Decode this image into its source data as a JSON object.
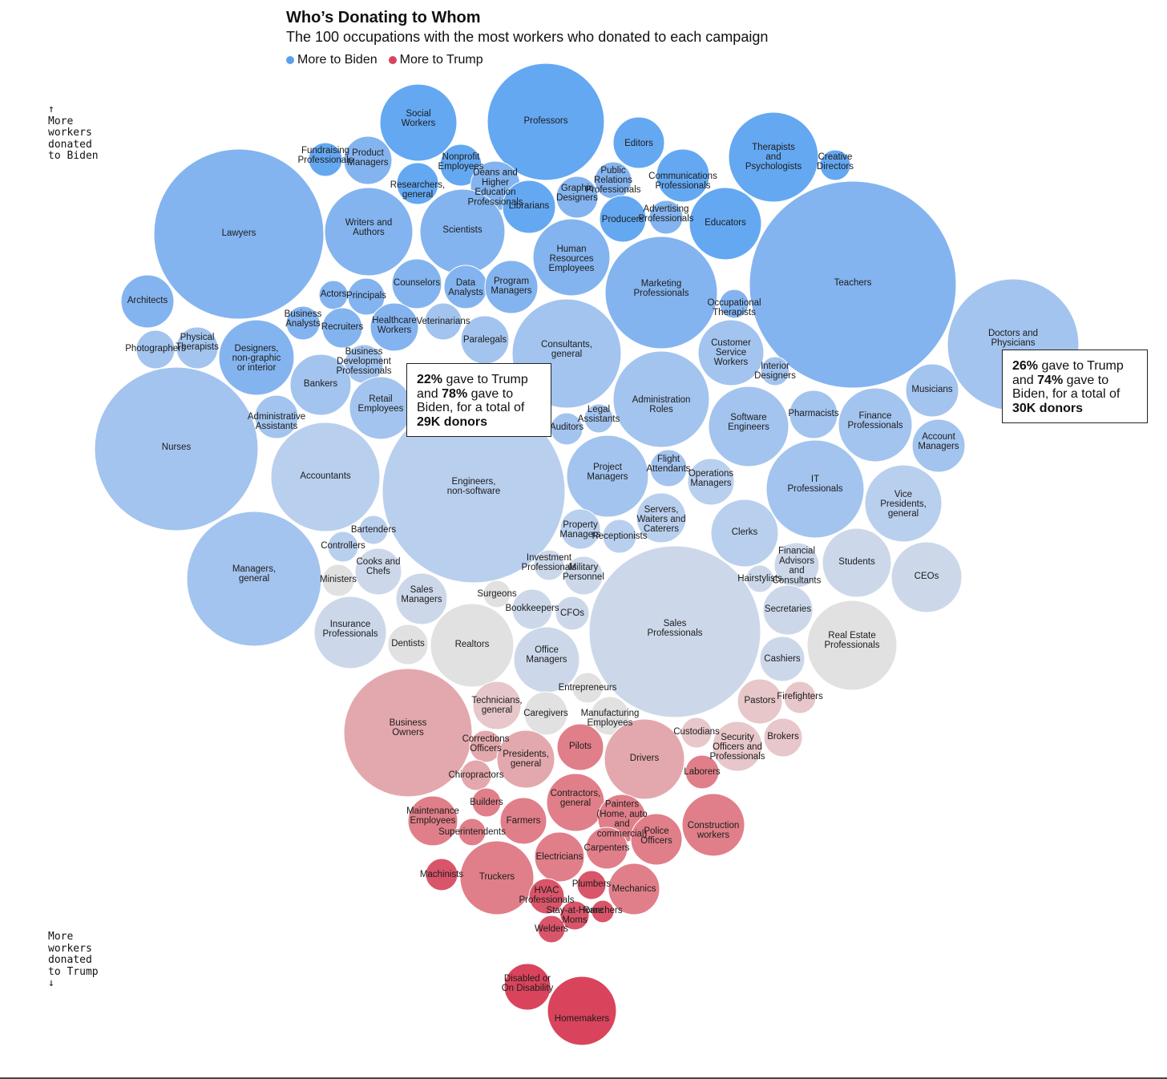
{
  "header": {
    "title": "Who’s Donating to Whom",
    "subtitle": "The 100 occupations with the most workers who donated to each campaign"
  },
  "legend": {
    "biden_label": "More to Biden",
    "trump_label": "More to Trump",
    "biden_color": "#5b9ff0",
    "trump_color": "#d9445c"
  },
  "axis_notes": {
    "top_arrow": "↑",
    "top": "More\nworkers\ndonated\nto Biden",
    "bottom": "More\nworkers\ndonated\nto Trump",
    "bottom_arrow": "↓"
  },
  "tooltips": {
    "engineers": {
      "trump_pct": "22%",
      "biden_pct": "78%",
      "total": "29K donors",
      "text_1": " gave to Trump and ",
      "text_2": " gave to Biden, for a total of "
    },
    "doctors": {
      "trump_pct": "26%",
      "biden_pct": "74%",
      "total": "30K donors",
      "text_1": " gave to Trump and ",
      "text_2": " gave to Biden, for a total of "
    }
  },
  "chart_data": {
    "type": "bubble",
    "title": "Who’s Donating to Whom",
    "subtitle": "The 100 occupations with the most workers who donated to each campaign",
    "encoding": {
      "size": "number of donors",
      "color": "share of donors to Trump vs Biden",
      "vertical": "more workers donated to Biden (top) vs to Trump (bottom)"
    },
    "labeled_points": [
      {
        "name": "Engineers, non-software",
        "trump_pct": 22,
        "biden_pct": 78,
        "donors": "29K"
      },
      {
        "name": "Doctors and Physicians",
        "trump_pct": 26,
        "biden_pct": 74,
        "donors": "30K"
      }
    ],
    "bubbles": [
      {
        "label": "Lawyers",
        "c": "b2"
      },
      {
        "label": "Professors",
        "c": "b1"
      },
      {
        "label": "Social Workers",
        "c": "b1"
      },
      {
        "label": "Fundraising Professionals",
        "c": "b1"
      },
      {
        "label": "Product Managers",
        "c": "b2"
      },
      {
        "label": "Nonprofit Employees",
        "c": "b1"
      },
      {
        "label": "Researchers, general",
        "c": "b1"
      },
      {
        "label": "Deans and Higher Education Professionals",
        "c": "b2"
      },
      {
        "label": "Librarians",
        "c": "b1"
      },
      {
        "label": "Graphic Designers",
        "c": "b2"
      },
      {
        "label": "Editors",
        "c": "b1"
      },
      {
        "label": "Public Relations Professionals",
        "c": "b2"
      },
      {
        "label": "Communications Professionals",
        "c": "b1"
      },
      {
        "label": "Therapists and Psychologists",
        "c": "b1"
      },
      {
        "label": "Creative Directors",
        "c": "b1"
      },
      {
        "label": "Writers and Authors",
        "c": "b2"
      },
      {
        "label": "Scientists",
        "c": "b2"
      },
      {
        "label": "Producers",
        "c": "b1"
      },
      {
        "label": "Advertising Professionals",
        "c": "b2"
      },
      {
        "label": "Educators",
        "c": "b1"
      },
      {
        "label": "Human Resources Employees",
        "c": "b2"
      },
      {
        "label": "Teachers",
        "c": "b2"
      },
      {
        "label": "Architects",
        "c": "b2"
      },
      {
        "label": "Counselors",
        "c": "b2"
      },
      {
        "label": "Data Analysts",
        "c": "b2"
      },
      {
        "label": "Program Managers",
        "c": "b2"
      },
      {
        "label": "Marketing Professionals",
        "c": "b2"
      },
      {
        "label": "Actors",
        "c": "b2"
      },
      {
        "label": "Principals",
        "c": "b2"
      },
      {
        "label": "Occupational Therapists",
        "c": "b2"
      },
      {
        "label": "Doctors and Physicians",
        "c": "b3"
      },
      {
        "label": "Business Analysts",
        "c": "b2"
      },
      {
        "label": "Recruiters",
        "c": "b2"
      },
      {
        "label": "Healthcare Workers",
        "c": "b2"
      },
      {
        "label": "Veterinarians",
        "c": "b3"
      },
      {
        "label": "Photographers",
        "c": "b3"
      },
      {
        "label": "Physical Therapists",
        "c": "b3"
      },
      {
        "label": "Designers, non-graphic or interior",
        "c": "b2"
      },
      {
        "label": "Paralegals",
        "c": "b3"
      },
      {
        "label": "Consultants, general",
        "c": "b3"
      },
      {
        "label": "Customer Service Workers",
        "c": "b3"
      },
      {
        "label": "Business Development Professionals",
        "c": "b3"
      },
      {
        "label": "Interior Designers",
        "c": "b3"
      },
      {
        "label": "Bankers",
        "c": "b3"
      },
      {
        "label": "Musicians",
        "c": "b3"
      },
      {
        "label": "Administrative Assistants",
        "c": "b3"
      },
      {
        "label": "Retail Employees",
        "c": "b3"
      },
      {
        "label": "Legal Assistants",
        "c": "b3"
      },
      {
        "label": "Administration Roles",
        "c": "b3"
      },
      {
        "label": "Software Engineers",
        "c": "b3"
      },
      {
        "label": "Pharmacists",
        "c": "b3"
      },
      {
        "label": "Finance Professionals",
        "c": "b3"
      },
      {
        "label": "Nurses",
        "c": "b3"
      },
      {
        "label": "Auditors",
        "c": "b3"
      },
      {
        "label": "Account Managers",
        "c": "b3"
      },
      {
        "label": "Accountants",
        "c": "b4"
      },
      {
        "label": "Engineers, non-software",
        "c": "b4"
      },
      {
        "label": "Project Managers",
        "c": "b3"
      },
      {
        "label": "Flight Attendants",
        "c": "b3"
      },
      {
        "label": "Operations Managers",
        "c": "b4"
      },
      {
        "label": "IT Professionals",
        "c": "b3"
      },
      {
        "label": "Vice Presidents, general",
        "c": "b4"
      },
      {
        "label": "Servers, Waiters and Caterers",
        "c": "b4"
      },
      {
        "label": "Bartenders",
        "c": "b4"
      },
      {
        "label": "Property Managers",
        "c": "b4"
      },
      {
        "label": "Receptionists",
        "c": "b4"
      },
      {
        "label": "Clerks",
        "c": "b4"
      },
      {
        "label": "Controllers",
        "c": "b4"
      },
      {
        "label": "Financial Advisors and Consultants",
        "c": "b5"
      },
      {
        "label": "Students",
        "c": "b5"
      },
      {
        "label": "CEOs",
        "c": "b5"
      },
      {
        "label": "Managers, general",
        "c": "b3"
      },
      {
        "label": "Cooks and Chefs",
        "c": "b5"
      },
      {
        "label": "Investment Professionals",
        "c": "b5"
      },
      {
        "label": "Military Personnel",
        "c": "b5"
      },
      {
        "label": "Hairstylists",
        "c": "b5"
      },
      {
        "label": "Ministers",
        "c": "g"
      },
      {
        "label": "Sales Managers",
        "c": "b5"
      },
      {
        "label": "Surgeons",
        "c": "g"
      },
      {
        "label": "Bookkeepers",
        "c": "b5"
      },
      {
        "label": "CFOs",
        "c": "b5"
      },
      {
        "label": "Secretaries",
        "c": "b5"
      },
      {
        "label": "Sales Professionals",
        "c": "b5"
      },
      {
        "label": "Insurance Professionals",
        "c": "b5"
      },
      {
        "label": "Dentists",
        "c": "g"
      },
      {
        "label": "Realtors",
        "c": "g"
      },
      {
        "label": "Office Managers",
        "c": "b5"
      },
      {
        "label": "Real Estate Professionals",
        "c": "g"
      },
      {
        "label": "Cashiers",
        "c": "b5"
      },
      {
        "label": "Entrepreneurs",
        "c": "g"
      },
      {
        "label": "Business Owners",
        "c": "r2"
      },
      {
        "label": "Technicians, general",
        "c": "r1"
      },
      {
        "label": "Caregivers",
        "c": "g"
      },
      {
        "label": "Manufacturing Employees",
        "c": "g"
      },
      {
        "label": "Pastors",
        "c": "r1"
      },
      {
        "label": "Firefighters",
        "c": "r1"
      },
      {
        "label": "Custodians",
        "c": "r1"
      },
      {
        "label": "Security Officers and Professionals",
        "c": "r1"
      },
      {
        "label": "Brokers",
        "c": "r1"
      },
      {
        "label": "Corrections Officers",
        "c": "r2"
      },
      {
        "label": "Presidents, general",
        "c": "r2"
      },
      {
        "label": "Pilots",
        "c": "r3"
      },
      {
        "label": "Drivers",
        "c": "r2"
      },
      {
        "label": "Laborers",
        "c": "r3"
      },
      {
        "label": "Chiropractors",
        "c": "r2"
      },
      {
        "label": "Builders",
        "c": "r3"
      },
      {
        "label": "Contractors, general",
        "c": "r3"
      },
      {
        "label": "Painters (Home, auto and commercial)",
        "c": "r3"
      },
      {
        "label": "Construction workers",
        "c": "r3"
      },
      {
        "label": "Maintenance Employees",
        "c": "r3"
      },
      {
        "label": "Superintendents",
        "c": "r3"
      },
      {
        "label": "Farmers",
        "c": "r3"
      },
      {
        "label": "Police Officers",
        "c": "r3"
      },
      {
        "label": "Electricians",
        "c": "r3"
      },
      {
        "label": "Carpenters",
        "c": "r3"
      },
      {
        "label": "Machinists",
        "c": "r4"
      },
      {
        "label": "Truckers",
        "c": "r3"
      },
      {
        "label": "Plumbers",
        "c": "r4"
      },
      {
        "label": "Mechanics",
        "c": "r3"
      },
      {
        "label": "HVAC Professionals",
        "c": "r4"
      },
      {
        "label": "Stay-at-Home Moms",
        "c": "r4"
      },
      {
        "label": "Ranchers",
        "c": "r4"
      },
      {
        "label": "Welders",
        "c": "r4"
      },
      {
        "label": "Disabled or On Disability",
        "c": "r5"
      },
      {
        "label": "Homemakers",
        "c": "r5"
      }
    ],
    "palette": {
      "b1": "#64a8f2",
      "b2": "#84b4ef",
      "b3": "#a3c4ee",
      "b4": "#b9cfee",
      "b5": "#ccd8ea",
      "g": "#e1e1e1",
      "r1": "#e7c7c9",
      "r2": "#e3a8ad",
      "r3": "#e07f89",
      "r4": "#d9556a",
      "r5": "#d9445c"
    }
  }
}
